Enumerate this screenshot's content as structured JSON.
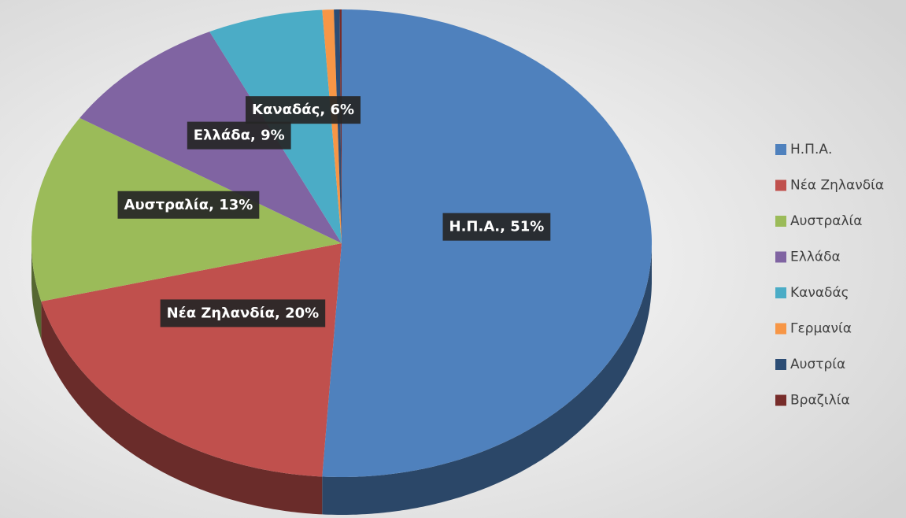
{
  "chart_data": {
    "type": "pie",
    "categories": [
      "Η.Π.Α.",
      "Νέα Ζηλανδία",
      "Αυστραλία",
      "Ελλάδα",
      "Καναδάς",
      "Γερμανία",
      "Αυστρία",
      "Βραζιλία"
    ],
    "values": [
      51,
      20,
      13,
      9,
      6,
      0.6,
      0.3,
      0.1
    ],
    "value_labels": [
      "Η.Π.Α., 51%",
      "Νέα Ζηλανδία, 20%",
      "Αυστραλία, 13%",
      "Ελλάδα, 9%",
      "Καναδάς, 6%",
      null,
      null,
      null
    ],
    "colors": [
      "#4f81bd",
      "#c0504d",
      "#9bbb59",
      "#8064a2",
      "#4bacc6",
      "#f79646",
      "#2c4d75",
      "#772c2a"
    ],
    "legend": "right"
  }
}
